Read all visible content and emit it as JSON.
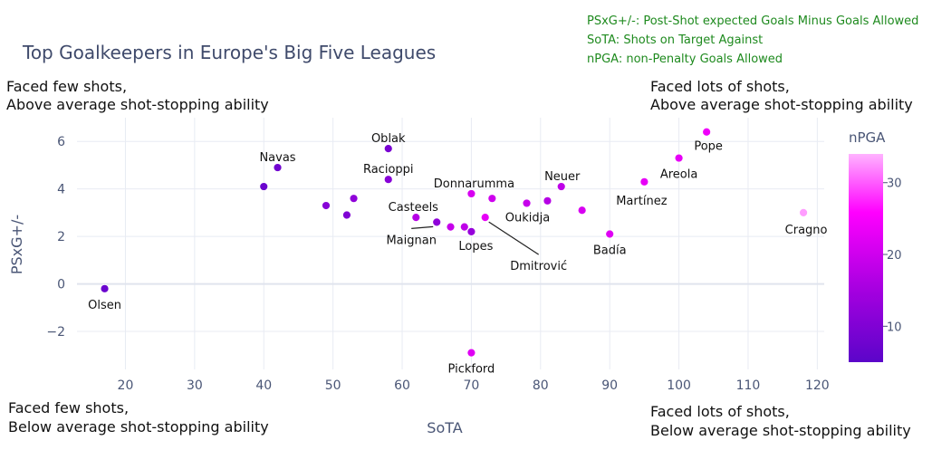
{
  "chart_data": {
    "type": "scatter",
    "title": "Top Goalkeepers in Europe's Big Five Leagues",
    "xlabel": "SoTA",
    "ylabel": "PSxG+/-",
    "xlim": [
      13,
      121
    ],
    "ylim": [
      -3.6,
      7.0
    ],
    "xticks": [
      20,
      30,
      40,
      50,
      60,
      70,
      80,
      90,
      100,
      110,
      120
    ],
    "yticks": [
      -2,
      0,
      2,
      4,
      6
    ],
    "ytick_labels": [
      "−2",
      "0",
      "2",
      "4",
      "6"
    ],
    "grid": true,
    "colorbar": {
      "title": "nPGA",
      "range": [
        5,
        34
      ],
      "ticks": [
        10,
        20,
        30
      ]
    },
    "points": [
      {
        "x": 17,
        "y": -0.2,
        "c": 7,
        "label": "Olsen"
      },
      {
        "x": 40,
        "y": 4.1,
        "c": 7,
        "label": ""
      },
      {
        "x": 42,
        "y": 4.9,
        "c": 8,
        "label": "Navas"
      },
      {
        "x": 49,
        "y": 3.3,
        "c": 11,
        "label": ""
      },
      {
        "x": 52,
        "y": 2.9,
        "c": 10,
        "label": ""
      },
      {
        "x": 53,
        "y": 3.6,
        "c": 12,
        "label": ""
      },
      {
        "x": 58,
        "y": 5.7,
        "c": 9,
        "label": "Oblak"
      },
      {
        "x": 58,
        "y": 4.4,
        "c": 11,
        "label": "Racioppi"
      },
      {
        "x": 62,
        "y": 2.8,
        "c": 17,
        "label": "Casteels"
      },
      {
        "x": 65,
        "y": 2.6,
        "c": 12,
        "label": "Maignan"
      },
      {
        "x": 67,
        "y": 2.4,
        "c": 19,
        "label": ""
      },
      {
        "x": 69,
        "y": 2.4,
        "c": 18,
        "label": ""
      },
      {
        "x": 70,
        "y": 2.2,
        "c": 13,
        "label": "Lopes"
      },
      {
        "x": 70,
        "y": 3.8,
        "c": 21,
        "label": "Donnarumma"
      },
      {
        "x": 72,
        "y": 2.8,
        "c": 23,
        "label": "Dmitrović"
      },
      {
        "x": 73,
        "y": 3.6,
        "c": 20,
        "label": ""
      },
      {
        "x": 78,
        "y": 3.4,
        "c": 19,
        "label": "Oukidja"
      },
      {
        "x": 81,
        "y": 3.5,
        "c": 17,
        "label": ""
      },
      {
        "x": 83,
        "y": 4.1,
        "c": 18,
        "label": "Neuer"
      },
      {
        "x": 86,
        "y": 3.1,
        "c": 21,
        "label": ""
      },
      {
        "x": 90,
        "y": 2.1,
        "c": 22,
        "label": "Badía"
      },
      {
        "x": 95,
        "y": 4.3,
        "c": 23,
        "label": "Martínez"
      },
      {
        "x": 100,
        "y": 5.3,
        "c": 23,
        "label": "Areola"
      },
      {
        "x": 104,
        "y": 6.4,
        "c": 24,
        "label": "Pope"
      },
      {
        "x": 118,
        "y": 3.0,
        "c": 33,
        "label": "Cragno"
      },
      {
        "x": 70,
        "y": -2.9,
        "c": 22,
        "label": "Pickford"
      }
    ],
    "annotations": {
      "top_left": [
        "Faced few shots,",
        "Above average shot-stopping ability"
      ],
      "top_right": [
        "Faced lots of shots,",
        "Above average shot-stopping ability"
      ],
      "bottom_left": [
        "Faced few shots,",
        "Below average shot-stopping ability"
      ],
      "bottom_right": [
        "Faced lots of shots,",
        "Below average shot-stopping ability"
      ]
    },
    "legend_notes": [
      "PSxG+/-: Post-Shot expected Goals Minus Goals Allowed",
      "SoTA: Shots on Target Against",
      "nPGA: non-Penalty Goals Allowed"
    ]
  }
}
